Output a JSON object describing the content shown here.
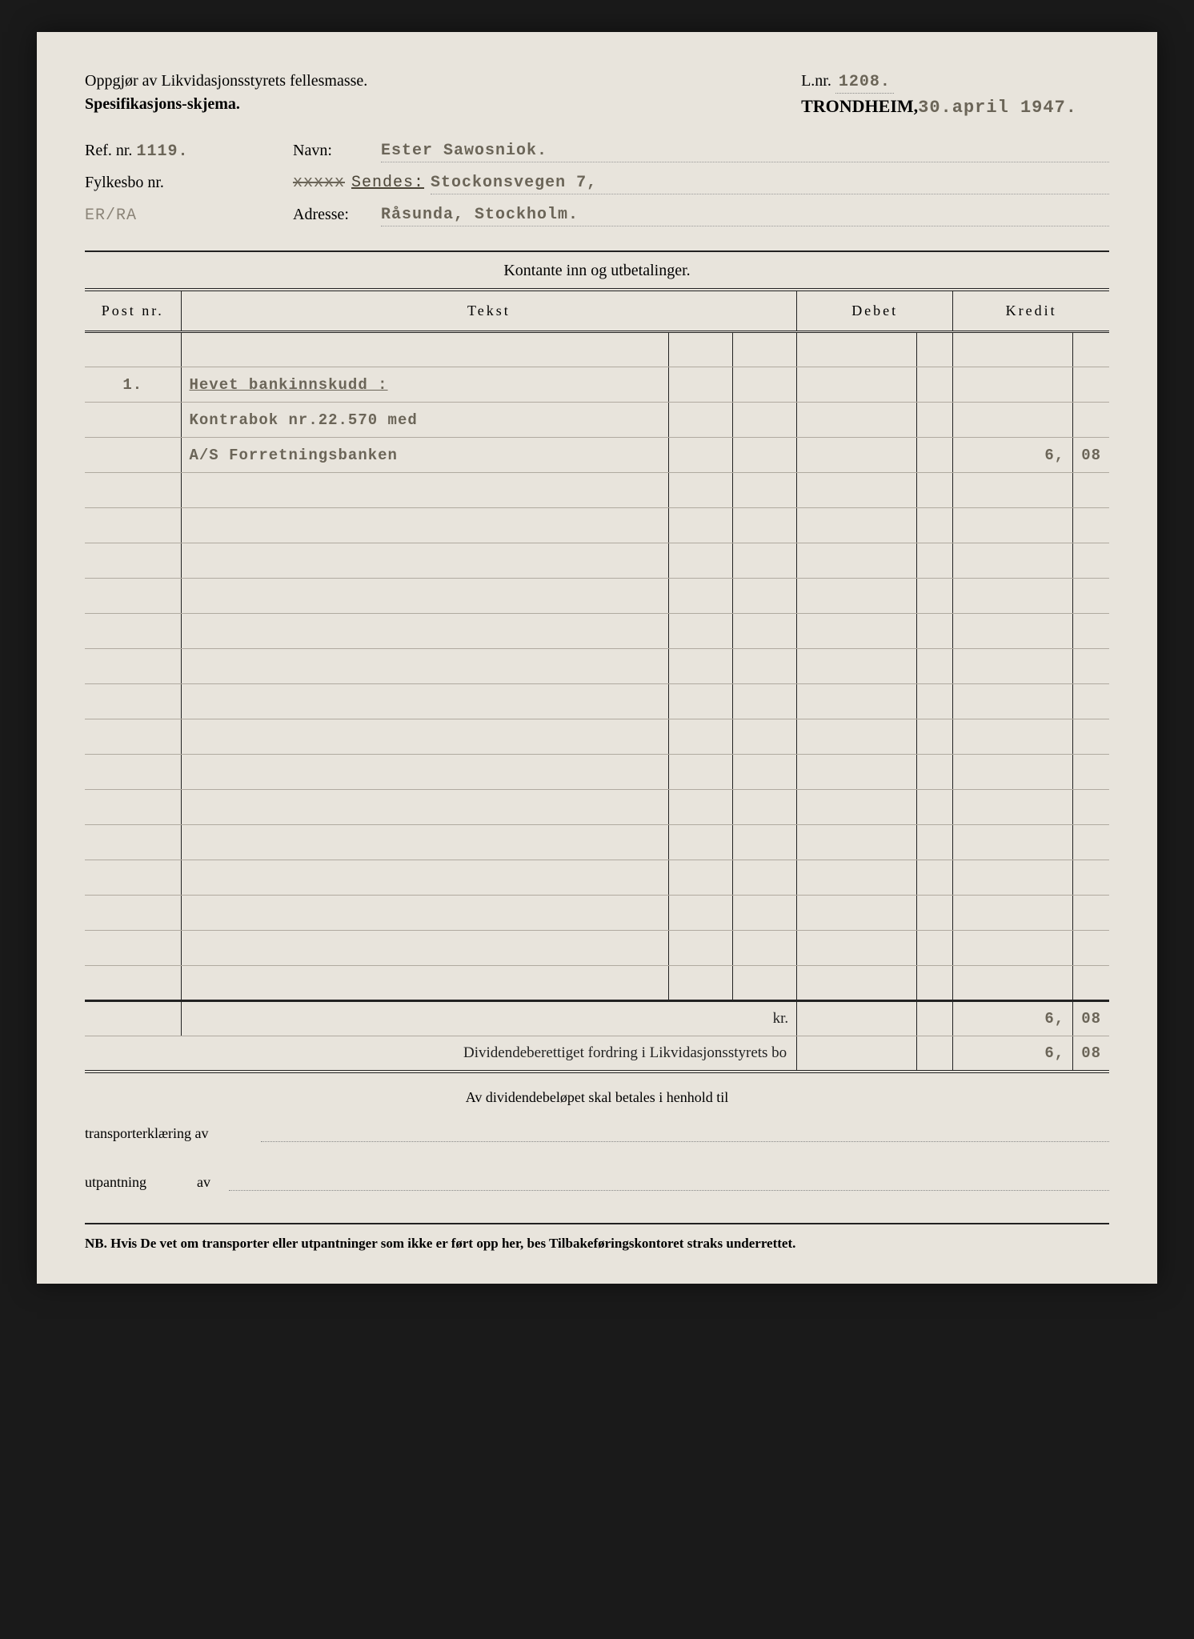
{
  "header": {
    "title1": "Oppgjør av Likvidasjonsstyrets fellesmasse.",
    "title2": "Spesifikasjons-skjema.",
    "lnr_label": "L.nr.",
    "lnr_value": "1208.",
    "city": "TRONDHEIM,",
    "date": "30.april 1947."
  },
  "meta": {
    "ref_label": "Ref. nr.",
    "ref_value": "1119.",
    "navn_label": "Navn:",
    "navn_value": "Ester Sawosniok.",
    "fylkesbo_label": "Fylkesbo nr.",
    "fylkesbo_value": "ER/RA",
    "sendes_label": "Sendes",
    "strike": "xxxxx",
    "sendes_value": "Stockonsvegen 7,",
    "adresse_label": "Adresse:",
    "adresse_value": "Råsunda, Stockholm."
  },
  "section_title": "Kontante inn og utbetalinger.",
  "columns": {
    "post": "Post nr.",
    "tekst": "Tekst",
    "debet": "Debet",
    "kredit": "Kredit"
  },
  "entries": [
    {
      "post": "1.",
      "lines": [
        {
          "text": "Hevet bankinnskudd :",
          "underline": true
        },
        {
          "text": "Kontrabok nr.22.570 med",
          "underline": false
        },
        {
          "text": "A/S Forretningsbanken",
          "underline": false,
          "kredit_main": "6,",
          "kredit_cents": "08"
        }
      ]
    }
  ],
  "blank_rows": 15,
  "sum": {
    "label": "kr.",
    "kredit_main": "6,",
    "kredit_cents": "08"
  },
  "dividend": {
    "label": "Dividendeberettiget fordring i Likvidasjonsstyrets bo",
    "kredit_main": "6,",
    "kredit_cents": "08"
  },
  "footer": {
    "note": "Av dividendebeløpet skal betales i henhold til",
    "transport_label": "transporterklæring av",
    "utpantning_label": "utpantning",
    "utpantning_av": "av",
    "nb": "NB. Hvis De vet om transporter eller utpantninger som ikke er ført opp her, bes Tilbakeføringskontoret straks underrettet."
  }
}
